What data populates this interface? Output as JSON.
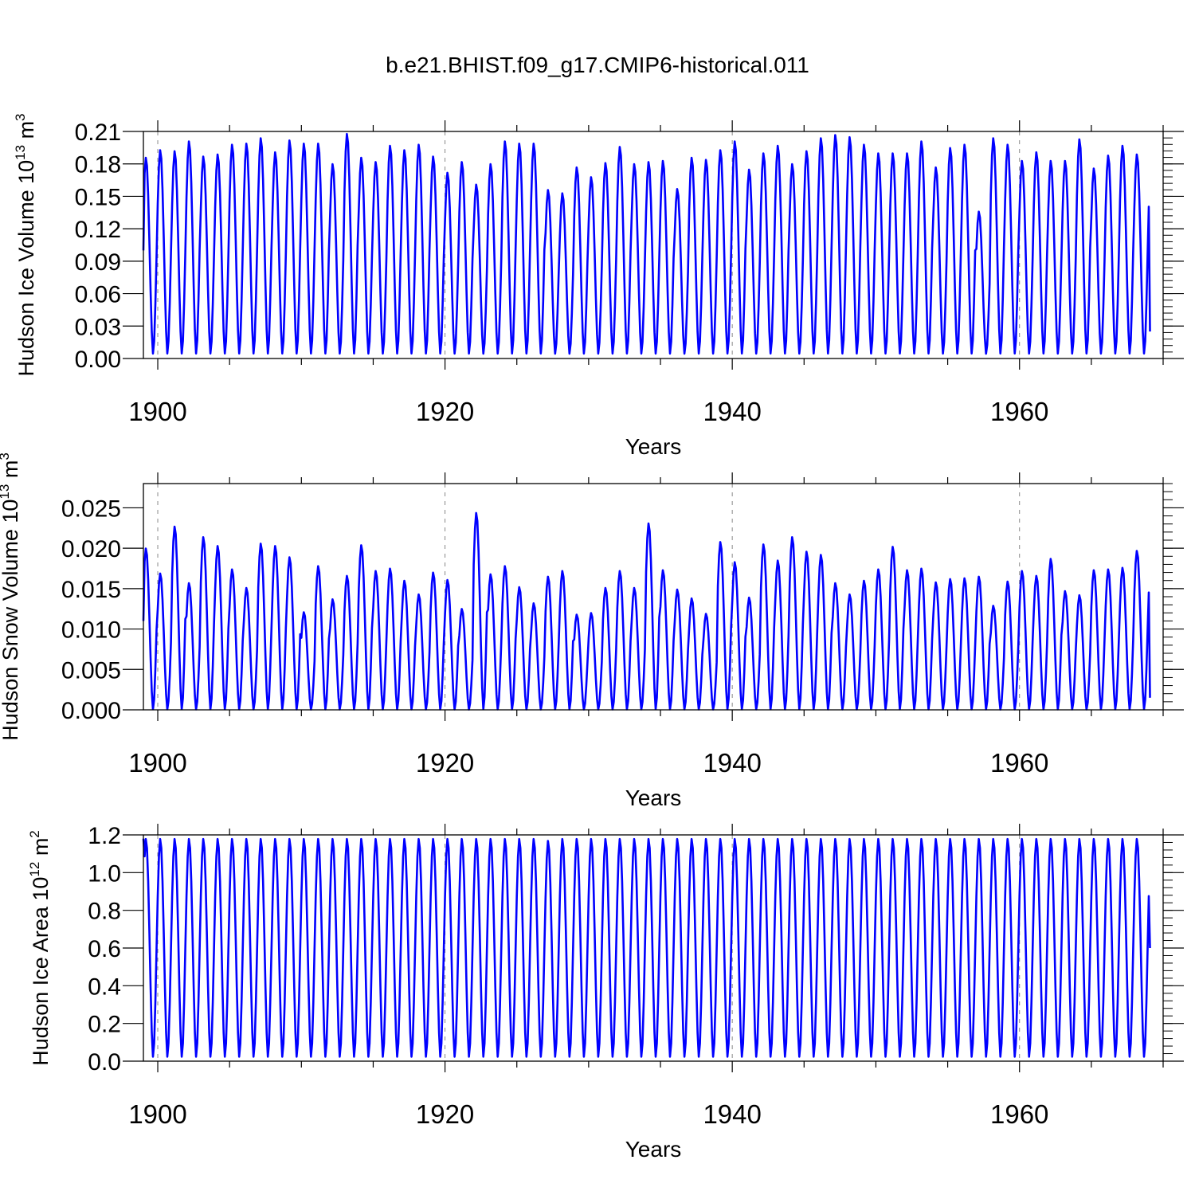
{
  "figure": {
    "title": "b.e21.BHIST.f09_g17.CMIP6-historical.011"
  },
  "style": {
    "series_color": "#0000ff",
    "axis_color": "#000000",
    "grid_color": "#888888"
  },
  "chart_data": [
    {
      "type": "line",
      "ylabel": "Hudson Ice Volume 10",
      "ylabel_exp": "13",
      "ylabel_unit": " m",
      "ylabel_unit_exp": "3",
      "xlabel": "Years",
      "xlim": [
        1899.0,
        1970.0
      ],
      "ylim": [
        0.0,
        0.21
      ],
      "yticks": [
        "0.00",
        "0.03",
        "0.06",
        "0.09",
        "0.12",
        "0.15",
        "0.18",
        "0.21"
      ],
      "xticks": [
        "1900",
        "1920",
        "1940",
        "1960"
      ],
      "start": 0.1,
      "min": 0.004,
      "end": 0.025,
      "annual_peaks": [
        0.186,
        0.193,
        0.192,
        0.201,
        0.187,
        0.189,
        0.198,
        0.199,
        0.204,
        0.191,
        0.202,
        0.199,
        0.199,
        0.18,
        0.208,
        0.186,
        0.182,
        0.197,
        0.193,
        0.198,
        0.187,
        0.172,
        0.182,
        0.161,
        0.18,
        0.201,
        0.199,
        0.199,
        0.156,
        0.153,
        0.177,
        0.168,
        0.181,
        0.196,
        0.18,
        0.182,
        0.183,
        0.157,
        0.186,
        0.184,
        0.193,
        0.201,
        0.175,
        0.19,
        0.197,
        0.18,
        0.192,
        0.204,
        0.207,
        0.205,
        0.198,
        0.19,
        0.19,
        0.19,
        0.201,
        0.177,
        0.195,
        0.198,
        0.136,
        0.204,
        0.198,
        0.183,
        0.191,
        0.183,
        0.183,
        0.203,
        0.176,
        0.188,
        0.197,
        0.189
      ]
    },
    {
      "type": "line",
      "ylabel": "Hudson Snow Volume 10",
      "ylabel_exp": "13",
      "ylabel_unit": " m",
      "ylabel_unit_exp": "3",
      "xlabel": "Years",
      "xlim": [
        1899.0,
        1970.0
      ],
      "ylim": [
        0.0,
        0.028
      ],
      "yticks": [
        "0.000",
        "0.005",
        "0.010",
        "0.015",
        "0.020",
        "0.025"
      ],
      "ytick_values": [
        0.0,
        0.005,
        0.01,
        0.015,
        0.02,
        0.025
      ],
      "xticks": [
        "1900",
        "1920",
        "1940",
        "1960"
      ],
      "start": 0.011,
      "min": 0.0,
      "end": 0.0015,
      "annual_peaks": [
        0.02,
        0.0169,
        0.0227,
        0.0157,
        0.0214,
        0.0203,
        0.0174,
        0.0151,
        0.0206,
        0.0203,
        0.0189,
        0.0121,
        0.0178,
        0.0137,
        0.0166,
        0.0204,
        0.0172,
        0.0175,
        0.016,
        0.0143,
        0.017,
        0.0161,
        0.0125,
        0.0244,
        0.0168,
        0.0178,
        0.0152,
        0.0132,
        0.0165,
        0.0172,
        0.0118,
        0.012,
        0.0151,
        0.0172,
        0.0151,
        0.0231,
        0.0173,
        0.0149,
        0.0138,
        0.0119,
        0.0208,
        0.0183,
        0.0139,
        0.0205,
        0.0185,
        0.0214,
        0.0196,
        0.0192,
        0.0157,
        0.0143,
        0.016,
        0.0174,
        0.0202,
        0.0173,
        0.0175,
        0.0158,
        0.0162,
        0.0163,
        0.0165,
        0.0129,
        0.0159,
        0.0172,
        0.0166,
        0.0187,
        0.0147,
        0.0142,
        0.0173,
        0.0174,
        0.0176,
        0.0197
      ]
    },
    {
      "type": "line",
      "ylabel": "Hudson Ice Area 10",
      "ylabel_exp": "12",
      "ylabel_unit": " m",
      "ylabel_unit_exp": "2",
      "xlabel": "Years",
      "xlim": [
        1899.0,
        1970.0
      ],
      "ylim": [
        0.0,
        1.2
      ],
      "yticks": [
        "0.0",
        "0.2",
        "0.4",
        "0.6",
        "0.8",
        "1.0",
        "1.2"
      ],
      "xticks": [
        "1900",
        "1920",
        "1940",
        "1960"
      ],
      "start": 1.18,
      "min": 0.02,
      "end": 0.6,
      "annual_peaks": [
        1.18,
        1.18,
        1.18,
        1.18,
        1.18,
        1.18,
        1.18,
        1.18,
        1.18,
        1.18,
        1.18,
        1.18,
        1.18,
        1.18,
        1.18,
        1.18,
        1.18,
        1.18,
        1.18,
        1.18,
        1.18,
        1.18,
        1.18,
        1.18,
        1.18,
        1.18,
        1.18,
        1.18,
        1.17,
        1.18,
        1.18,
        1.18,
        1.18,
        1.18,
        1.18,
        1.18,
        1.18,
        1.18,
        1.18,
        1.18,
        1.18,
        1.18,
        1.18,
        1.18,
        1.18,
        1.18,
        1.18,
        1.18,
        1.18,
        1.18,
        1.18,
        1.18,
        1.18,
        1.18,
        1.18,
        1.18,
        1.18,
        1.18,
        1.18,
        1.18,
        1.18,
        1.18,
        1.18,
        1.18,
        1.18,
        1.18,
        1.18,
        1.18,
        1.18,
        1.18
      ]
    }
  ]
}
